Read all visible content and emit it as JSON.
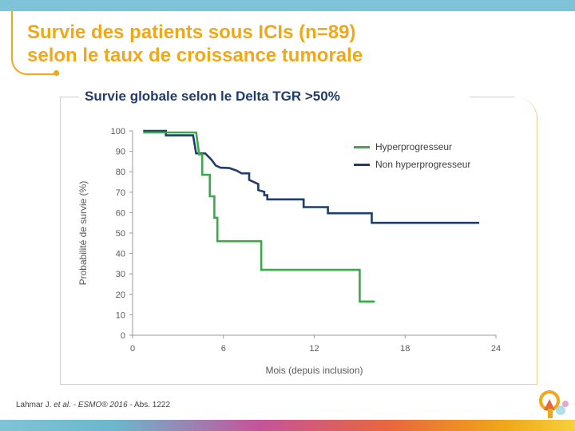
{
  "slide": {
    "title_line1": "Survie des patients sous ICIs (n=89)",
    "title_line2": "selon le taux de croissance tumorale",
    "citation": {
      "authors": "Lahmar J.",
      "etal": "et al.",
      "sep1": " - ",
      "journal": "ESMO® 2016",
      "sep2": " - Abs. 1222"
    }
  },
  "colors": {
    "title": "#f0a818",
    "subtitle": "#1f3c6b",
    "hyperprogresseur": "#3aaa48",
    "non_hyperprogresseur": "#1f3c6b"
  },
  "chart_data": {
    "type": "line",
    "step": true,
    "title": "Survie globale selon le Delta TGR >50%",
    "xlabel": "Mois (depuis inclusion)",
    "ylabel": "Probabilité de survie (%)",
    "xlim": [
      0,
      24
    ],
    "ylim": [
      0,
      100
    ],
    "xticks": [
      0,
      6,
      12,
      18,
      24
    ],
    "yticks": [
      0,
      10,
      20,
      30,
      40,
      50,
      60,
      70,
      80,
      90,
      100
    ],
    "legend_position": "top-right",
    "grid": false,
    "series": [
      {
        "name": "Hyperprogresseur",
        "color": "#3aaa48",
        "points": [
          [
            0.7,
            99.2
          ],
          [
            4.2,
            99.2
          ],
          [
            4.4,
            88.5
          ],
          [
            4.6,
            88.5
          ],
          [
            4.6,
            78.5
          ],
          [
            5.1,
            78.5
          ],
          [
            5.1,
            68.0
          ],
          [
            5.4,
            68.0
          ],
          [
            5.4,
            57.5
          ],
          [
            5.6,
            57.5
          ],
          [
            5.6,
            46.0
          ],
          [
            8.5,
            46.0
          ],
          [
            8.5,
            32.0
          ],
          [
            15.0,
            32.0
          ],
          [
            15.0,
            16.5
          ],
          [
            16.0,
            16.5
          ]
        ]
      },
      {
        "name": "Non hyperprogresseur",
        "color": "#1f3c6b",
        "points": [
          [
            0.7,
            100.0
          ],
          [
            2.2,
            100.0
          ],
          [
            2.2,
            97.8
          ],
          [
            4.0,
            97.8
          ],
          [
            4.2,
            89.0
          ],
          [
            4.8,
            89.0
          ],
          [
            5.2,
            86.0
          ],
          [
            5.5,
            83.0
          ],
          [
            5.8,
            82.0
          ],
          [
            6.4,
            81.8
          ],
          [
            6.9,
            80.5
          ],
          [
            7.2,
            79.2
          ],
          [
            7.7,
            79.2
          ],
          [
            7.7,
            76.0
          ],
          [
            8.3,
            74.0
          ],
          [
            8.3,
            71.0
          ],
          [
            8.7,
            70.2
          ],
          [
            8.7,
            68.5
          ],
          [
            8.9,
            68.5
          ],
          [
            8.9,
            66.5
          ],
          [
            11.3,
            66.5
          ],
          [
            11.3,
            62.7
          ],
          [
            12.9,
            62.7
          ],
          [
            12.9,
            59.7
          ],
          [
            15.8,
            59.7
          ],
          [
            15.8,
            55.0
          ],
          [
            22.9,
            55.0
          ]
        ]
      }
    ]
  }
}
